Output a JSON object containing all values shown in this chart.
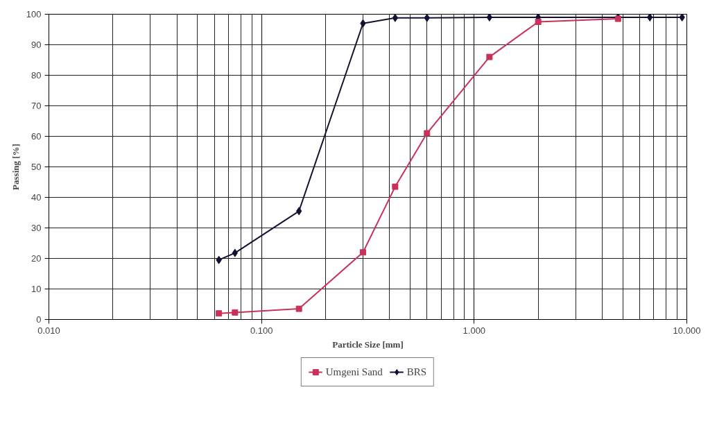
{
  "chart_data": {
    "type": "line",
    "xlabel": "Particle Size [mm]",
    "ylabel": "Passing [%]",
    "log": "x",
    "xlim": [
      0.01,
      10
    ],
    "xticks": [
      {
        "value": 0.01,
        "label": "0.010"
      },
      {
        "value": 0.1,
        "label": "0.100"
      },
      {
        "value": 1,
        "label": "1.000"
      },
      {
        "value": 10,
        "label": "10.000"
      }
    ],
    "ylim": [
      0,
      100
    ],
    "yticks": [
      0,
      10,
      20,
      30,
      40,
      50,
      60,
      70,
      80,
      90,
      100
    ],
    "grid": true,
    "legend": "bottom",
    "series": [
      {
        "name": "Umgeni Sand",
        "color": "#c8325a",
        "marker": "square",
        "x": [
          0.063,
          0.075,
          0.15,
          0.3,
          0.425,
          0.6,
          1.18,
          2,
          4.75
        ],
        "values": [
          2,
          2.3,
          3.5,
          22,
          43.5,
          61,
          86,
          97.5,
          98.5
        ]
      },
      {
        "name": "BRS",
        "color": "#111133",
        "marker": "diamond",
        "x": [
          0.063,
          0.075,
          0.15,
          0.3,
          0.425,
          0.6,
          1.18,
          2,
          4.75,
          6.7,
          9.5
        ],
        "values": [
          19.5,
          21.8,
          35.5,
          97,
          98.8,
          98.8,
          99,
          99,
          99,
          99,
          99
        ]
      }
    ]
  }
}
